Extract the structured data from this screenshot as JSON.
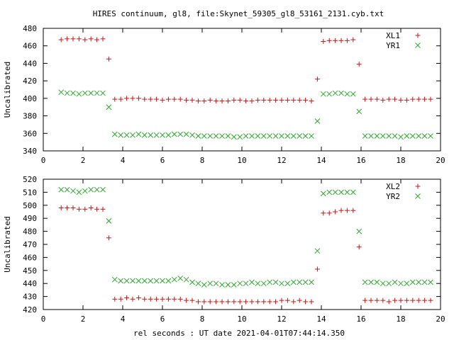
{
  "title": "HIRES continuum, gl8, file:Skynet_59305_gl8_53161_2131.cyb.txt",
  "xlabel": "rel seconds : UT date 2021-04-01T07:44:14.350",
  "colors": {
    "plus": "#c81414",
    "cross": "#2fa82f"
  },
  "chart_data": [
    {
      "type": "scatter",
      "ylabel": "Uncalibrated",
      "xlim": [
        0,
        20
      ],
      "ylim": [
        340,
        480
      ],
      "xticks": [
        0,
        2,
        4,
        6,
        8,
        10,
        12,
        14,
        16,
        18,
        20
      ],
      "yticks": [
        340,
        360,
        380,
        400,
        420,
        440,
        460,
        480
      ],
      "legend": "top-right",
      "x": [
        0.9,
        1.2,
        1.5,
        1.8,
        2.1,
        2.4,
        2.7,
        3.0,
        3.3,
        3.6,
        3.9,
        4.2,
        4.5,
        4.8,
        5.1,
        5.4,
        5.7,
        6.0,
        6.3,
        6.6,
        6.9,
        7.2,
        7.5,
        7.8,
        8.1,
        8.4,
        8.7,
        9.0,
        9.3,
        9.6,
        9.9,
        10.2,
        10.5,
        10.8,
        11.1,
        11.4,
        11.7,
        12.0,
        12.3,
        12.6,
        12.9,
        13.2,
        13.5,
        13.8,
        14.1,
        14.4,
        14.7,
        15.0,
        15.3,
        15.6,
        15.9,
        16.2,
        16.5,
        16.8,
        17.1,
        17.4,
        17.7,
        18.0,
        18.3,
        18.6,
        18.9,
        19.2,
        19.5
      ],
      "series": [
        {
          "name": "XL1",
          "marker": "plus",
          "values": [
            467,
            468,
            468,
            468,
            467,
            468,
            467,
            468,
            445,
            399,
            399,
            400,
            400,
            400,
            399,
            399,
            399,
            398,
            399,
            399,
            399,
            398,
            398,
            397,
            397,
            398,
            397,
            397,
            397,
            398,
            398,
            397,
            397,
            398,
            398,
            398,
            398,
            398,
            398,
            398,
            398,
            398,
            397,
            422,
            465,
            466,
            466,
            466,
            466,
            467,
            439,
            399,
            399,
            399,
            398,
            399,
            399,
            398,
            398,
            399,
            399,
            399,
            399
          ]
        },
        {
          "name": "YR1",
          "marker": "cross",
          "values": [
            407,
            406,
            406,
            405,
            406,
            406,
            406,
            406,
            390,
            359,
            358,
            358,
            358,
            359,
            358,
            358,
            358,
            358,
            358,
            359,
            359,
            359,
            358,
            357,
            357,
            357,
            357,
            357,
            357,
            356,
            356,
            357,
            357,
            357,
            357,
            357,
            357,
            357,
            357,
            357,
            357,
            357,
            357,
            374,
            405,
            405,
            406,
            406,
            405,
            405,
            385,
            357,
            357,
            357,
            357,
            357,
            357,
            356,
            357,
            357,
            357,
            357,
            357
          ]
        }
      ]
    },
    {
      "type": "scatter",
      "ylabel": "Uncalibrated",
      "xlim": [
        0,
        20
      ],
      "ylim": [
        420,
        520
      ],
      "xticks": [
        0,
        2,
        4,
        6,
        8,
        10,
        12,
        14,
        16,
        18,
        20
      ],
      "yticks": [
        420,
        430,
        440,
        450,
        460,
        470,
        480,
        490,
        500,
        510,
        520
      ],
      "legend": "top-right",
      "x": [
        0.9,
        1.2,
        1.5,
        1.8,
        2.1,
        2.4,
        2.7,
        3.0,
        3.3,
        3.6,
        3.9,
        4.2,
        4.5,
        4.8,
        5.1,
        5.4,
        5.7,
        6.0,
        6.3,
        6.6,
        6.9,
        7.2,
        7.5,
        7.8,
        8.1,
        8.4,
        8.7,
        9.0,
        9.3,
        9.6,
        9.9,
        10.2,
        10.5,
        10.8,
        11.1,
        11.4,
        11.7,
        12.0,
        12.3,
        12.6,
        12.9,
        13.2,
        13.5,
        13.8,
        14.1,
        14.4,
        14.7,
        15.0,
        15.3,
        15.6,
        15.9,
        16.2,
        16.5,
        16.8,
        17.1,
        17.4,
        17.7,
        18.0,
        18.3,
        18.6,
        18.9,
        19.2,
        19.5
      ],
      "series": [
        {
          "name": "XL2",
          "marker": "plus",
          "values": [
            498,
            498,
            498,
            497,
            497,
            498,
            497,
            497,
            475,
            428,
            428,
            429,
            428,
            429,
            428,
            428,
            428,
            428,
            428,
            428,
            428,
            427,
            427,
            426,
            426,
            426,
            426,
            426,
            426,
            426,
            426,
            426,
            426,
            426,
            426,
            426,
            426,
            427,
            427,
            426,
            427,
            426,
            426,
            451,
            494,
            494,
            495,
            496,
            496,
            496,
            468,
            427,
            427,
            427,
            427,
            426,
            427,
            427,
            427,
            427,
            427,
            427,
            427
          ]
        },
        {
          "name": "YR2",
          "marker": "cross",
          "values": [
            512,
            512,
            511,
            510,
            511,
            512,
            512,
            512,
            488,
            443,
            442,
            442,
            442,
            442,
            442,
            442,
            442,
            442,
            442,
            443,
            444,
            443,
            441,
            440,
            439,
            440,
            440,
            439,
            439,
            439,
            440,
            440,
            441,
            440,
            440,
            441,
            441,
            440,
            440,
            441,
            441,
            441,
            441,
            465,
            509,
            510,
            510,
            510,
            510,
            510,
            480,
            441,
            441,
            441,
            440,
            440,
            441,
            440,
            440,
            441,
            441,
            441,
            441
          ]
        }
      ]
    }
  ]
}
